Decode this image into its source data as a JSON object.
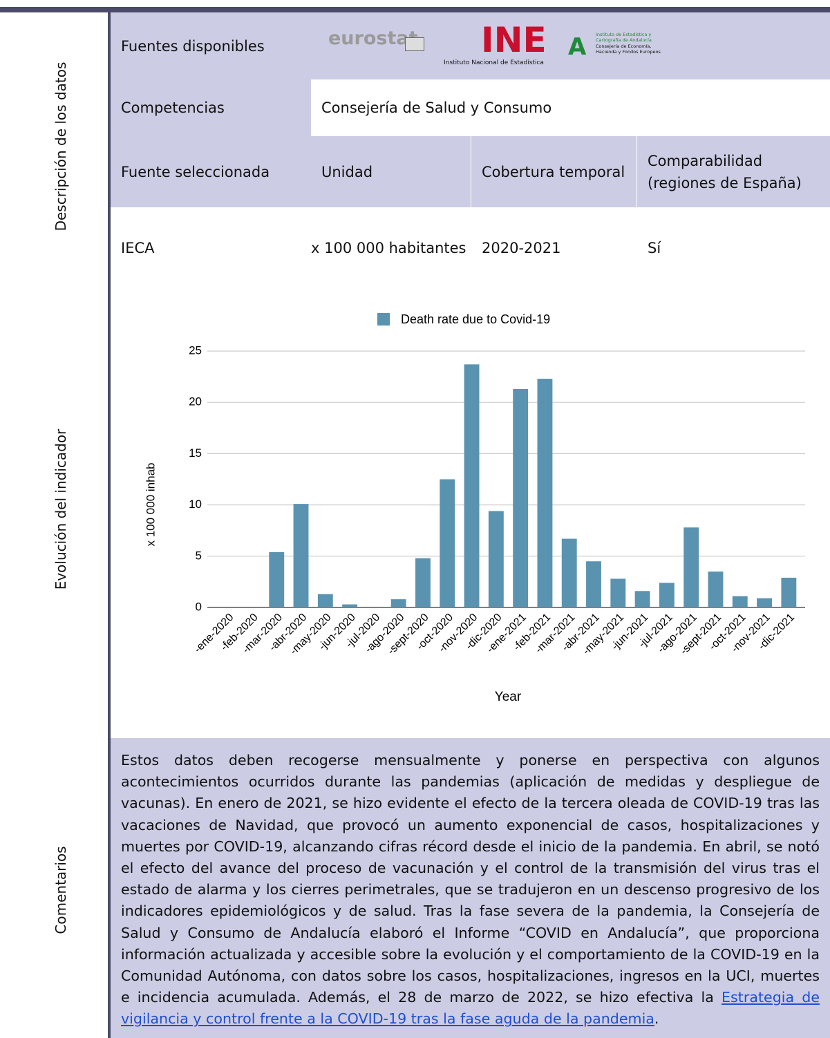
{
  "sidebar": [
    "Descripción de los datos",
    "Evolución del indicador",
    "Comentarios"
  ],
  "rows": {
    "sources": {
      "label": "Fuentes disponibles",
      "logos": [
        "eurostat",
        "INE",
        "Instituto Nacional de Estadística",
        "Instituto de Estadística y Cartografía de Andalucía",
        "Consejería de Economía, Hacienda y Fondos Europeos"
      ]
    },
    "competencias": {
      "label": "Competencias",
      "value": "Consejería de Salud y Consumo"
    },
    "header": [
      "Fuente seleccionada",
      "Unidad",
      "Cobertura temporal",
      "Comparabilidad (regiones de España)"
    ],
    "values": [
      "IECA",
      "x 100 000 habitantes",
      "2020-2021",
      "Sí"
    ]
  },
  "chart_data": {
    "type": "bar",
    "x_label": "Year",
    "y_label": "x 100 000 inhab",
    "categories": [
      "-ene-2020",
      "-feb-2020",
      "-mar-2020",
      "-abr-2020",
      "-may-2020",
      "-jun-2020",
      "-jul-2020",
      "-ago-2020",
      "-sept-2020",
      "-oct-2020",
      "-nov-2020",
      "-dic-2020",
      "-ene-2021",
      "-feb-2021",
      "-mar-2021",
      "-abr-2021",
      "-may-2021",
      "-jun-2021",
      "-jul-2021",
      "-ago-2021",
      "-sept-2021",
      "-oct-2021",
      "-nov-2021",
      "-dic-2021"
    ],
    "series": [
      {
        "name": "Death rate due to Covid-19",
        "color": "#5a93b0",
        "values": [
          0,
          0,
          5.4,
          10.1,
          1.3,
          0.3,
          0,
          0.8,
          4.8,
          12.5,
          23.7,
          9.4,
          21.3,
          22.3,
          6.7,
          4.5,
          2.8,
          1.6,
          2.4,
          7.8,
          3.5,
          1.1,
          0.9,
          2.9
        ]
      }
    ],
    "ylim": [
      0,
      25
    ],
    "yticks": [
      0,
      5,
      10,
      15,
      20,
      25
    ],
    "grid": true,
    "legend": "top"
  },
  "comments": {
    "text": "Estos datos deben recogerse mensualmente y ponerse en perspectiva con algunos acontecimientos ocurridos durante las pandemias (aplicación de medidas y despliegue de vacunas). En enero de 2021, se hizo evidente el efecto de la tercera oleada de COVID-19 tras las vacaciones de Navidad, que provocó un aumento exponencial de casos, hospitalizaciones y muertes por COVID-19, alcanzando cifras récord desde el inicio de la pandemia. En abril, se notó el efecto del avance del proceso de vacunación y el control de la transmisión del virus tras el estado de alarma y los cierres perimetrales, que se tradujeron en un descenso progresivo de los indicadores epidemiológicos y de salud. Tras la fase severa de la pandemia, la Consejería de Salud y Consumo de Andalucía elaboró el Informe “COVID en Andalucía”, que proporciona información actualizada y accesible sobre la evolución y el comportamiento de la COVID-19 en la Comunidad Autónoma, con datos sobre los casos, hospitalizaciones, ingresos en la UCI, muertes e incidencia acumulada. Además, el 28 de marzo de 2022, se hizo efectiva la ",
    "link": "Estrategia de vigilancia y control frente a la COVID-19 tras la fase aguda de la pandemia",
    "end": "."
  }
}
